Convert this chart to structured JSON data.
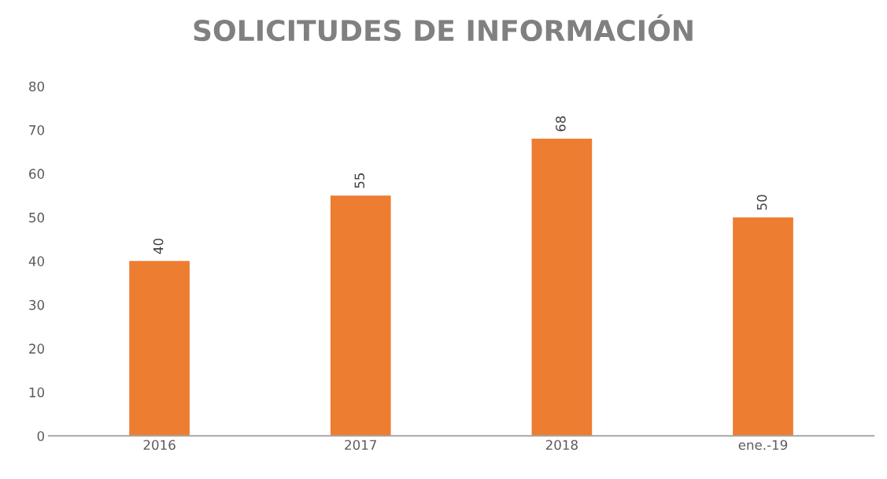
{
  "chart_data": {
    "type": "bar",
    "title": "SOLICITUDES DE INFORMACIÓN",
    "categories": [
      "2016",
      "2017",
      "2018",
      "ene.-19"
    ],
    "values": [
      40,
      55,
      68,
      50
    ],
    "color": "#ed7d31",
    "ylim": [
      0,
      80
    ],
    "yticks": [
      0,
      10,
      20,
      30,
      40,
      50,
      60,
      70,
      80
    ],
    "data_labels": true,
    "grid": false,
    "legend": false
  }
}
